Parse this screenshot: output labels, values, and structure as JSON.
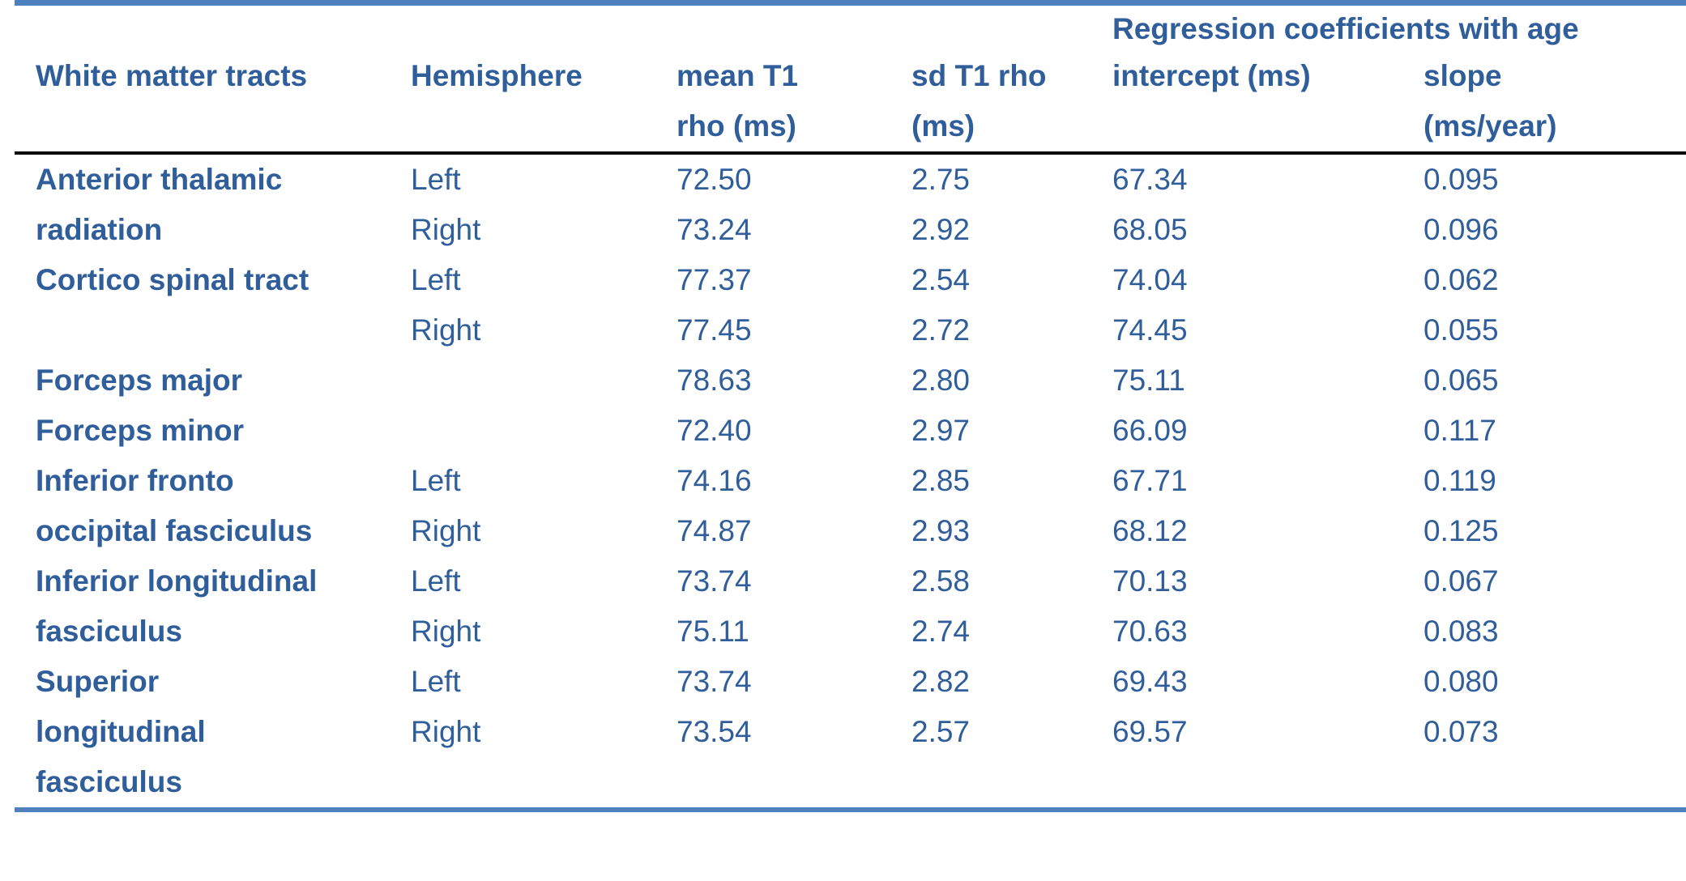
{
  "colors": {
    "text_blue": "#305E9B",
    "accent_bar_blue": "#4E80BD",
    "header_rule_black": "#0a0a0a"
  },
  "table": {
    "group_header": "Regression coefficients with age",
    "columns": [
      {
        "id": "tract",
        "header_lines": [
          "White matter tracts"
        ]
      },
      {
        "id": "hemisphere",
        "header_lines": [
          "Hemisphere"
        ]
      },
      {
        "id": "mean-t1-rho",
        "header_lines": [
          "mean T1",
          "rho (ms)"
        ]
      },
      {
        "id": "sd-t1-rho",
        "header_lines": [
          "sd T1 rho",
          "(ms)"
        ]
      },
      {
        "id": "intercept",
        "header_lines": [
          "intercept (ms)"
        ]
      },
      {
        "id": "slope",
        "header_lines": [
          "slope",
          "(ms/year)"
        ]
      }
    ],
    "tracts": [
      {
        "name": "Anterior thalamic radiation",
        "name_lines": [
          "Anterior thalamic",
          "radiation"
        ],
        "measurements": [
          {
            "hemisphere": "Left",
            "mean_t1_rho_ms": "72.50",
            "sd_t1_rho_ms": "2.75",
            "intercept_ms": "67.34",
            "slope_ms_per_year": "0.095"
          },
          {
            "hemisphere": "Right",
            "mean_t1_rho_ms": "73.24",
            "sd_t1_rho_ms": "2.92",
            "intercept_ms": "68.05",
            "slope_ms_per_year": "0.096"
          }
        ]
      },
      {
        "name": "Cortico spinal tract",
        "name_lines": [
          "Cortico spinal tract"
        ],
        "measurements": [
          {
            "hemisphere": "Left",
            "mean_t1_rho_ms": "77.37",
            "sd_t1_rho_ms": "2.54",
            "intercept_ms": "74.04",
            "slope_ms_per_year": "0.062"
          },
          {
            "hemisphere": "Right",
            "mean_t1_rho_ms": "77.45",
            "sd_t1_rho_ms": "2.72",
            "intercept_ms": "74.45",
            "slope_ms_per_year": "0.055"
          }
        ]
      },
      {
        "name": "Forceps major",
        "name_lines": [
          "Forceps major"
        ],
        "measurements": [
          {
            "hemisphere": "",
            "mean_t1_rho_ms": "78.63",
            "sd_t1_rho_ms": "2.80",
            "intercept_ms": "75.11",
            "slope_ms_per_year": "0.065"
          }
        ]
      },
      {
        "name": "Forceps minor",
        "name_lines": [
          "Forceps minor"
        ],
        "measurements": [
          {
            "hemisphere": "",
            "mean_t1_rho_ms": "72.40",
            "sd_t1_rho_ms": "2.97",
            "intercept_ms": "66.09",
            "slope_ms_per_year": "0.117"
          }
        ]
      },
      {
        "name": "Inferior fronto occipital fasciculus",
        "name_lines": [
          "Inferior fronto",
          "occipital fasciculus"
        ],
        "measurements": [
          {
            "hemisphere": "Left",
            "mean_t1_rho_ms": "74.16",
            "sd_t1_rho_ms": "2.85",
            "intercept_ms": "67.71",
            "slope_ms_per_year": "0.119"
          },
          {
            "hemisphere": "Right",
            "mean_t1_rho_ms": "74.87",
            "sd_t1_rho_ms": "2.93",
            "intercept_ms": "68.12",
            "slope_ms_per_year": "0.125"
          }
        ]
      },
      {
        "name": "Inferior longitudinal fasciculus",
        "name_lines": [
          "Inferior longitudinal",
          "fasciculus"
        ],
        "measurements": [
          {
            "hemisphere": "Left",
            "mean_t1_rho_ms": "73.74",
            "sd_t1_rho_ms": "2.58",
            "intercept_ms": "70.13",
            "slope_ms_per_year": "0.067"
          },
          {
            "hemisphere": "Right",
            "mean_t1_rho_ms": "75.11",
            "sd_t1_rho_ms": "2.74",
            "intercept_ms": "70.63",
            "slope_ms_per_year": "0.083"
          }
        ]
      },
      {
        "name": "Superior longitudinal fasciculus",
        "name_lines": [
          "Superior",
          "longitudinal",
          "fasciculus"
        ],
        "measurements": [
          {
            "hemisphere": "Left",
            "mean_t1_rho_ms": "73.74",
            "sd_t1_rho_ms": "2.82",
            "intercept_ms": "69.43",
            "slope_ms_per_year": "0.080"
          },
          {
            "hemisphere": "Right",
            "mean_t1_rho_ms": "73.54",
            "sd_t1_rho_ms": "2.57",
            "intercept_ms": "69.57",
            "slope_ms_per_year": "0.073"
          }
        ]
      }
    ]
  }
}
